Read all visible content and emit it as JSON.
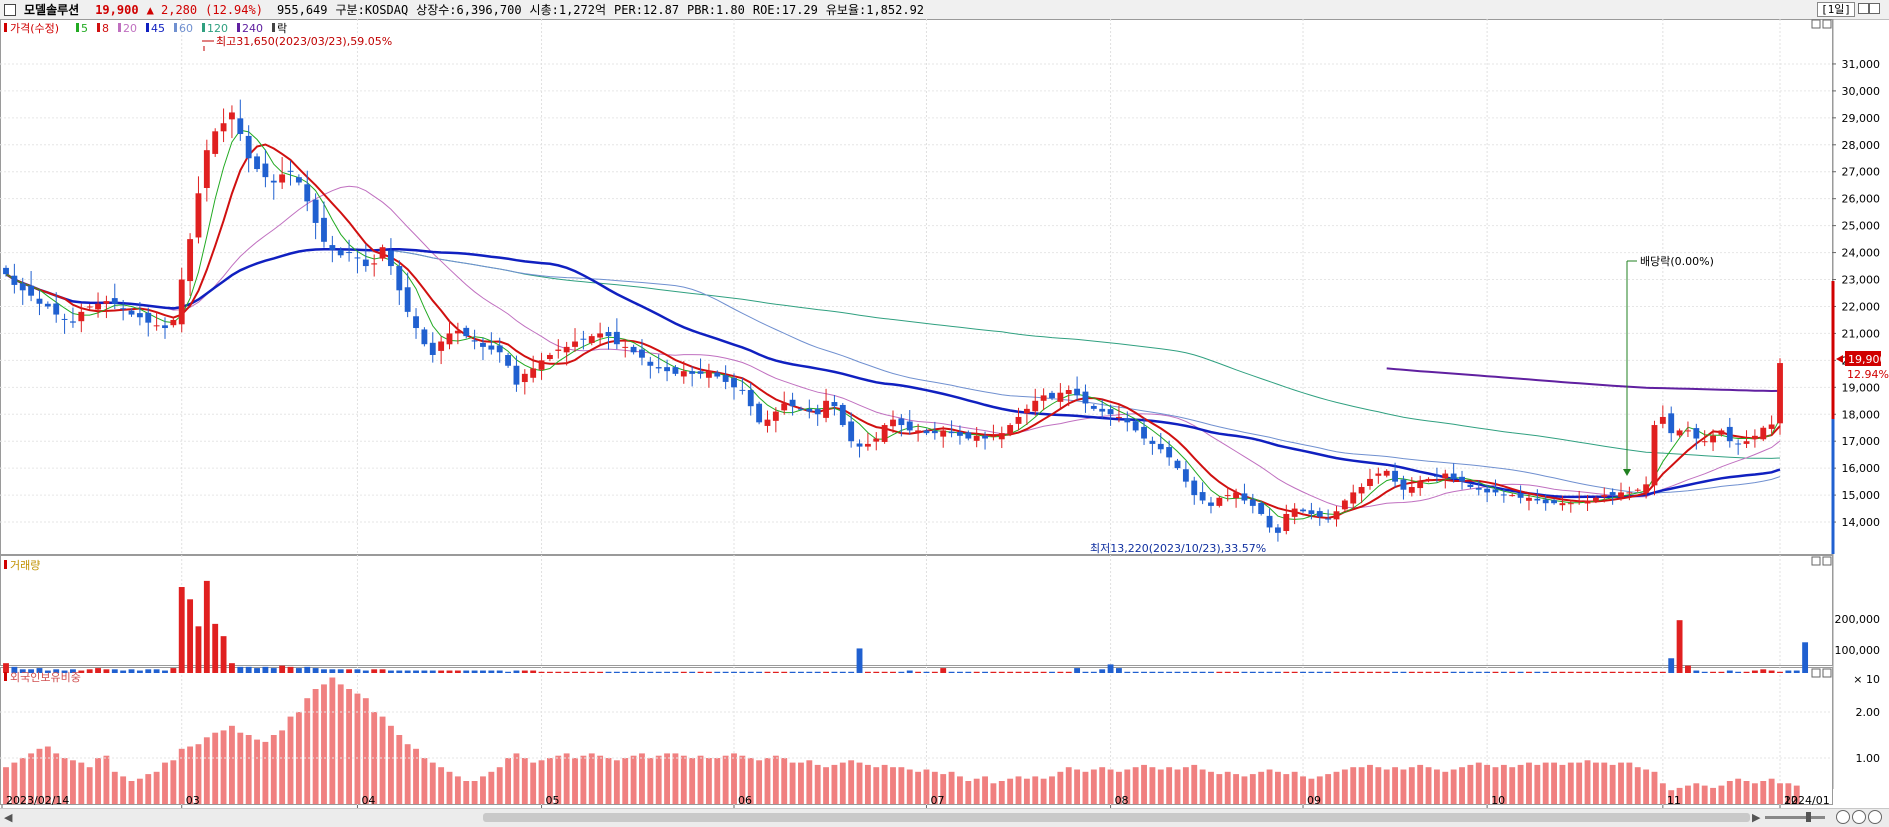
{
  "header": {
    "stock_name": "모델솔루션",
    "price": "19,900",
    "change": "▲ 2,280",
    "change_pct": "(12.94%)",
    "volume": "955,649",
    "market": "구분:KOSDAQ",
    "shares": "상장수:6,396,700",
    "market_cap": "시총:1,272억",
    "per": "PER:12.87",
    "pbr": "PBR:1.80",
    "roe": "ROE:17.29",
    "reserve": "유보율:1,852.92",
    "period": "[1일]"
  },
  "price_legend": {
    "main": "가격(수정)",
    "mas": [
      {
        "label": "5",
        "color": "#22aa22"
      },
      {
        "label": "8",
        "color": "#d01010"
      },
      {
        "label": "20",
        "color": "#c070c0"
      },
      {
        "label": "45",
        "color": "#1020c0"
      },
      {
        "label": "60",
        "color": "#7090d0"
      },
      {
        "label": "120",
        "color": "#30a080"
      },
      {
        "label": "240",
        "color": "#6020a0"
      }
    ],
    "ex": "락"
  },
  "colors": {
    "up": "#e02020",
    "down": "#2060d0",
    "foreign": "#f08080"
  },
  "volume_title": "거래량",
  "foreign_title": "외국인보유비중",
  "chart_data": [
    {
      "type": "candlestick",
      "ylim": [
        13000,
        32000
      ],
      "y_ticks": [
        "31,000",
        "30,000",
        "29,000",
        "28,000",
        "27,000",
        "26,000",
        "25,000",
        "24,000",
        "23,000",
        "22,000",
        "21,000",
        "20,000",
        "19,000",
        "18,000",
        "17,000",
        "16,000",
        "15,000",
        "14,000"
      ],
      "x_ticks": [
        "2023/02/14",
        "03",
        "04",
        "05",
        "06",
        "07",
        "08",
        "09",
        "10",
        "11",
        "12",
        "2024/01"
      ],
      "annotations": {
        "high": "최고31,650(2023/03/23),59.05%",
        "low": "최저13,220(2023/10/23),33.57%",
        "dividend": "배당락(0.00%)",
        "last_price": "19,900",
        "last_pct": "12.94%"
      },
      "close": [
        23200,
        22800,
        22600,
        22400,
        22100,
        22000,
        21700,
        21500,
        21400,
        21800,
        22000,
        22100,
        22200,
        22100,
        21900,
        21700,
        21600,
        21400,
        21300,
        21200,
        21500,
        23000,
        24500,
        26200,
        27800,
        28500,
        28800,
        29200,
        28400,
        27500,
        27100,
        26800,
        26600,
        26900,
        27000,
        26600,
        25900,
        25100,
        24400,
        24100,
        23900,
        24000,
        23800,
        23500,
        23600,
        24200,
        23500,
        22600,
        21800,
        21200,
        20600,
        20200,
        20700,
        21000,
        21100,
        20900,
        20700,
        20500,
        20400,
        20300,
        19800,
        19100,
        19500,
        19700,
        20000,
        20200,
        20400,
        20500,
        20700,
        20800,
        20900,
        21000,
        20900,
        20600,
        20500,
        20300,
        20100,
        19800,
        19700,
        19600,
        19500,
        19600,
        19500,
        19500,
        19600,
        19400,
        19200,
        19000,
        18900,
        18300,
        17700,
        17800,
        18100,
        18400,
        18300,
        18200,
        18100,
        18000,
        18500,
        18300,
        17600,
        17000,
        16800,
        16900,
        17100,
        17600,
        17800,
        17600,
        17400,
        17400,
        17300,
        17300,
        17400,
        17300,
        17200,
        17100,
        17200,
        17100,
        17200,
        17300,
        17600,
        17900,
        18200,
        18500,
        18700,
        18600,
        18800,
        18900,
        18700,
        18400,
        18200,
        18100,
        18000,
        17900,
        17700,
        17400,
        17100,
        16900,
        16700,
        16400,
        16000,
        15500,
        15000,
        14800,
        14600,
        14900,
        15000,
        15100,
        14800,
        14600,
        14300,
        13800,
        13600,
        14300,
        14500,
        14400,
        14300,
        14200,
        14100,
        14400,
        14800,
        15100,
        15300,
        15600,
        15800,
        15900,
        15500,
        15200,
        15300,
        15500,
        15600,
        15700,
        15800,
        15600,
        15500,
        15300,
        15200,
        15100,
        15100,
        15000,
        15000,
        14900,
        14900,
        14800,
        14700,
        14700,
        14700,
        14700,
        14800,
        14800,
        14900,
        15000,
        15000,
        15100,
        15100,
        15200,
        15400,
        17600,
        17900,
        17300,
        17400,
        17400,
        17100,
        17000,
        17200,
        17400,
        17000,
        16900,
        17000,
        17200,
        17500,
        17620,
        19900
      ],
      "ma_values_note": "",
      "foreign_pct_ylim": [
        0,
        3
      ]
    },
    {
      "type": "bar",
      "title": "거래량",
      "y_ticks": [
        "200,000",
        "100,000",
        "× 10"
      ],
      "values": [
        8,
        5,
        3,
        3,
        4,
        2,
        3,
        2,
        3,
        2,
        3,
        4,
        3,
        3,
        2,
        3,
        2,
        3,
        3,
        2,
        4,
        70,
        60,
        38,
        75,
        40,
        30,
        8,
        5,
        5,
        4,
        5,
        4,
        6,
        5,
        4,
        5,
        4,
        3,
        3,
        3,
        3,
        3,
        2,
        3,
        3,
        2,
        2,
        2,
        2,
        2,
        2,
        2,
        2,
        2,
        2,
        2,
        2,
        2,
        2,
        1,
        2,
        2,
        2,
        1,
        1,
        1,
        1,
        1,
        1,
        1,
        1,
        1,
        1,
        1,
        1,
        1,
        1,
        1,
        1,
        1,
        1,
        1,
        1,
        1,
        1,
        1,
        1,
        1,
        1,
        1,
        1,
        1,
        1,
        1,
        1,
        1,
        1,
        1,
        1,
        1,
        1,
        20,
        1,
        1,
        1,
        1,
        1,
        2,
        1,
        1,
        1,
        4,
        1,
        1,
        1,
        1,
        1,
        1,
        1,
        1,
        1,
        1,
        1,
        1,
        1,
        1,
        1,
        4,
        1,
        1,
        3,
        7,
        4,
        1,
        1,
        1,
        1,
        1,
        1,
        1,
        1,
        1,
        1,
        1,
        1,
        1,
        1,
        1,
        1,
        1,
        1,
        1,
        1,
        1,
        1,
        1,
        1,
        1,
        1,
        1,
        1,
        1,
        1,
        1,
        1,
        1,
        1,
        1,
        1,
        1,
        1,
        1,
        1,
        1,
        1,
        1,
        1,
        1,
        1,
        1,
        1,
        1,
        1,
        1,
        1,
        1,
        1,
        1,
        1,
        1,
        1,
        1,
        1,
        1,
        1,
        1,
        1,
        1,
        12,
        43,
        6,
        2,
        1,
        1,
        1,
        2,
        1,
        1,
        2,
        3,
        2,
        1,
        2,
        2,
        25
      ]
    },
    {
      "type": "bar",
      "title": "외국인보유비중",
      "y_ticks": [
        "2.00",
        "1.00"
      ],
      "values": [
        0.8,
        0.9,
        1.0,
        1.1,
        1.2,
        1.25,
        1.1,
        1.0,
        0.95,
        0.9,
        0.8,
        1.0,
        1.05,
        0.7,
        0.6,
        0.5,
        0.55,
        0.65,
        0.7,
        0.9,
        0.95,
        1.2,
        1.25,
        1.3,
        1.45,
        1.55,
        1.6,
        1.7,
        1.55,
        1.5,
        1.4,
        1.35,
        1.5,
        1.6,
        1.9,
        2.0,
        2.3,
        2.5,
        2.6,
        2.75,
        2.6,
        2.5,
        2.4,
        2.3,
        2.0,
        1.9,
        1.7,
        1.5,
        1.3,
        1.2,
        1.0,
        0.9,
        0.8,
        0.7,
        0.6,
        0.5,
        0.5,
        0.6,
        0.7,
        0.8,
        1.0,
        1.1,
        1.0,
        0.9,
        0.95,
        1.0,
        1.05,
        1.1,
        1.0,
        1.05,
        1.1,
        1.05,
        1.0,
        0.95,
        1.0,
        1.05,
        1.1,
        1.0,
        1.05,
        1.1,
        1.1,
        1.05,
        1.0,
        1.05,
        1.0,
        1.0,
        1.05,
        1.1,
        1.05,
        1.0,
        0.95,
        1.0,
        1.05,
        1.0,
        0.9,
        0.9,
        0.95,
        0.85,
        0.8,
        0.85,
        0.9,
        0.95,
        0.9,
        0.85,
        0.8,
        0.85,
        0.8,
        0.8,
        0.75,
        0.7,
        0.75,
        0.7,
        0.65,
        0.7,
        0.6,
        0.5,
        0.55,
        0.6,
        0.45,
        0.5,
        0.55,
        0.6,
        0.55,
        0.6,
        0.55,
        0.6,
        0.7,
        0.8,
        0.75,
        0.7,
        0.75,
        0.8,
        0.75,
        0.7,
        0.75,
        0.8,
        0.85,
        0.8,
        0.75,
        0.8,
        0.75,
        0.8,
        0.85,
        0.75,
        0.7,
        0.65,
        0.7,
        0.65,
        0.6,
        0.65,
        0.7,
        0.75,
        0.7,
        0.65,
        0.7,
        0.6,
        0.55,
        0.6,
        0.65,
        0.7,
        0.75,
        0.8,
        0.8,
        0.85,
        0.8,
        0.75,
        0.8,
        0.75,
        0.8,
        0.85,
        0.8,
        0.75,
        0.7,
        0.75,
        0.8,
        0.85,
        0.9,
        0.85,
        0.8,
        0.85,
        0.8,
        0.85,
        0.9,
        0.85,
        0.9,
        0.9,
        0.85,
        0.9,
        0.9,
        0.95,
        0.9,
        0.9,
        0.85,
        0.9,
        0.9,
        0.8,
        0.75,
        0.7,
        0.45,
        0.3,
        0.35,
        0.4,
        0.45,
        0.4,
        0.35,
        0.4,
        0.5,
        0.55,
        0.5,
        0.45,
        0.5,
        0.55,
        0.45,
        0.45,
        0.4
      ]
    }
  ]
}
